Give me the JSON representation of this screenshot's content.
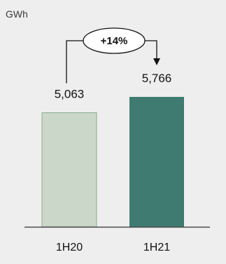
{
  "chart_data": {
    "type": "bar",
    "unit_label": "GWh",
    "categories": [
      "1H20",
      "1H21"
    ],
    "values": [
      5063,
      5766
    ],
    "value_labels": [
      "5,063",
      "5,766"
    ],
    "bar_colors": [
      "#cbd8c9",
      "#3f7b71"
    ],
    "bar_outline": "#8aa88c",
    "change_label": "+14%",
    "ylim": [
      0,
      5766
    ],
    "grid": false,
    "title": "",
    "xlabel": "",
    "ylabel": ""
  }
}
